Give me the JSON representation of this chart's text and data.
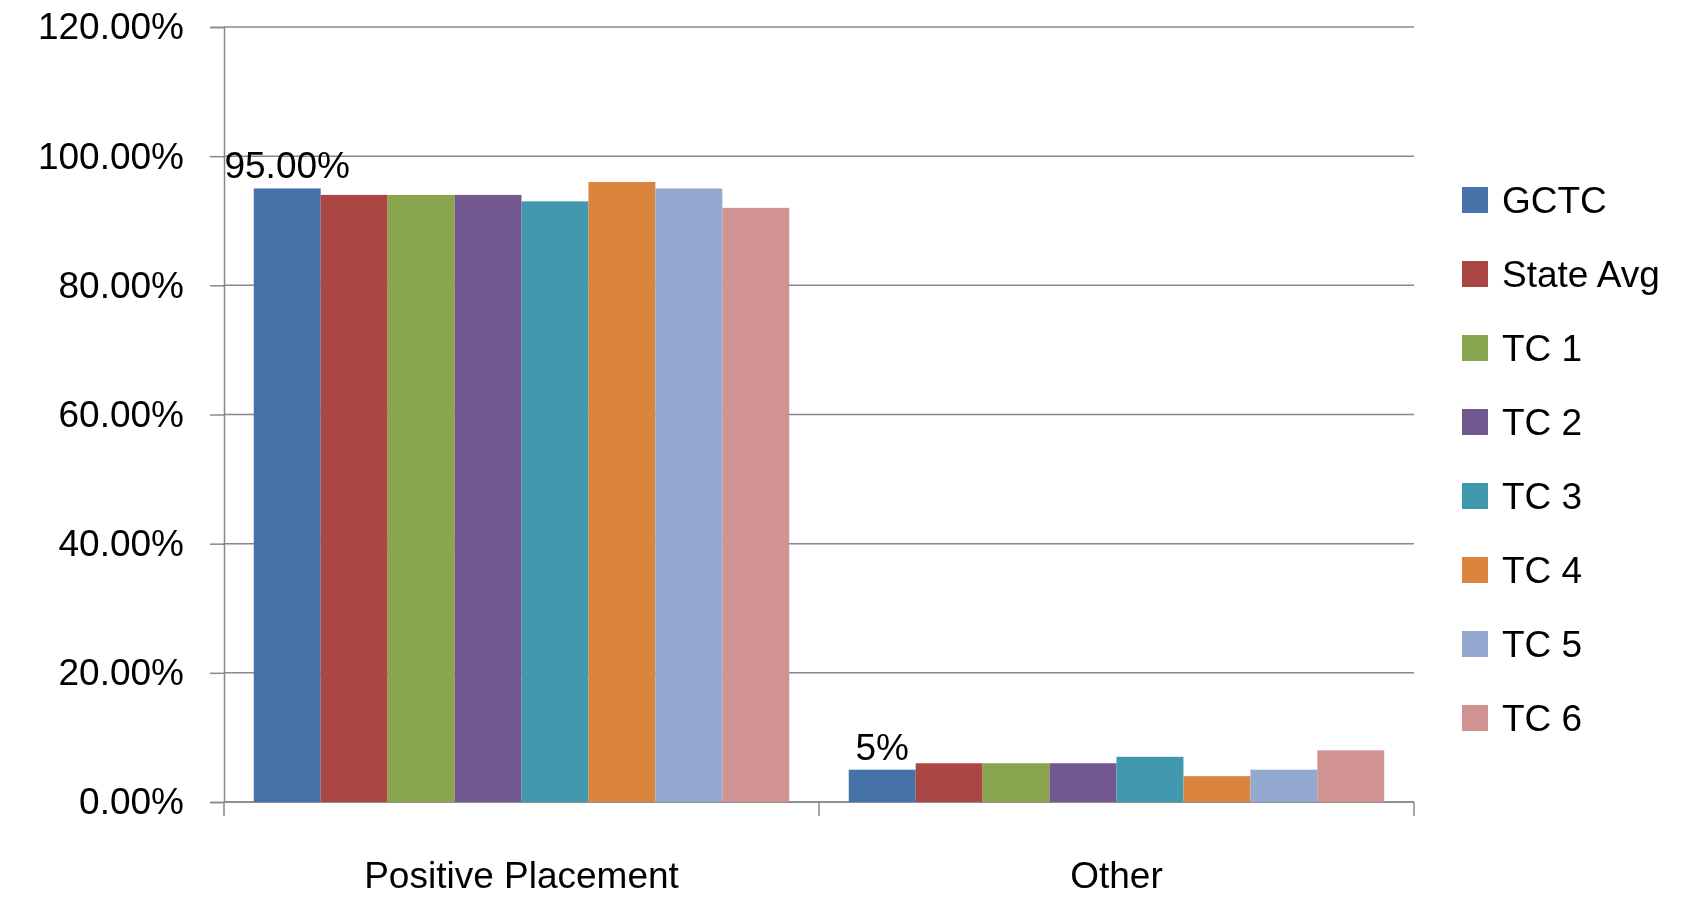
{
  "chart_data": {
    "type": "bar",
    "categories": [
      "Positive Placement",
      "Other"
    ],
    "series": [
      {
        "name": "GCTC",
        "color": "#4572a7",
        "values": [
          95,
          5
        ],
        "value_labels": [
          "95.00%",
          "5%"
        ]
      },
      {
        "name": "State Avg",
        "color": "#aa4643",
        "values": [
          94,
          6
        ]
      },
      {
        "name": "TC 1",
        "color": "#89a54e",
        "values": [
          94,
          6
        ]
      },
      {
        "name": "TC 2",
        "color": "#71588f",
        "values": [
          94,
          6
        ]
      },
      {
        "name": "TC 3",
        "color": "#4198af",
        "values": [
          93,
          7
        ]
      },
      {
        "name": "TC 4",
        "color": "#db843d",
        "values": [
          96,
          4
        ]
      },
      {
        "name": "TC 5",
        "color": "#93a9cf",
        "values": [
          95,
          5
        ]
      },
      {
        "name": "TC 6",
        "color": "#d19392",
        "values": [
          92,
          8
        ]
      }
    ],
    "ylim": [
      0,
      120
    ],
    "yticks": [
      {
        "value": 0,
        "label": "0.00%"
      },
      {
        "value": 20,
        "label": "20.00%"
      },
      {
        "value": 40,
        "label": "40.00%"
      },
      {
        "value": 60,
        "label": "60.00%"
      },
      {
        "value": 80,
        "label": "80.00%"
      },
      {
        "value": 100,
        "label": "100.00%"
      },
      {
        "value": 120,
        "label": "120.00%"
      }
    ],
    "grid": "y",
    "legend": "right"
  }
}
